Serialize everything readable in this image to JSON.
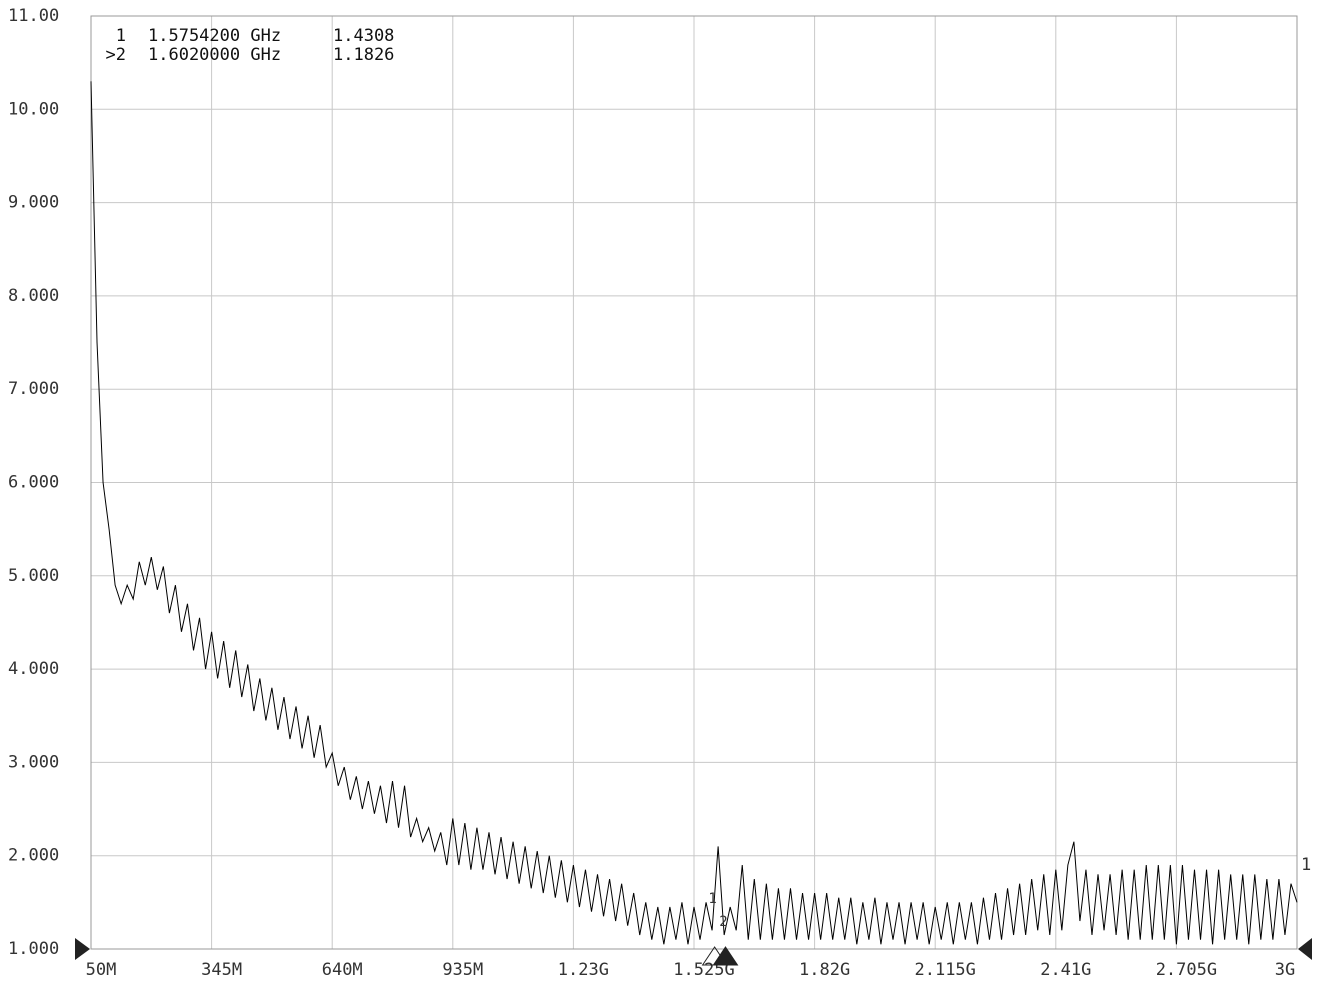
{
  "chart_data": {
    "type": "line",
    "color": "#000000",
    "grid": true,
    "trace_label": "1",
    "xlim": [
      50,
      3000
    ],
    "ylim": [
      1,
      11
    ],
    "xticks": [
      {
        "value": 50,
        "label": "50M"
      },
      {
        "value": 345,
        "label": "345M"
      },
      {
        "value": 640,
        "label": "640M"
      },
      {
        "value": 935,
        "label": "935M"
      },
      {
        "value": 1230,
        "label": "1.23G"
      },
      {
        "value": 1525,
        "label": "1.525G"
      },
      {
        "value": 1820,
        "label": "1.82G"
      },
      {
        "value": 2115,
        "label": "2.115G"
      },
      {
        "value": 2410,
        "label": "2.41G"
      },
      {
        "value": 2705,
        "label": "2.705G"
      },
      {
        "value": 3000,
        "label": "3G"
      }
    ],
    "yticks": [
      {
        "value": 1,
        "label": "1.000"
      },
      {
        "value": 2,
        "label": "2.000"
      },
      {
        "value": 3,
        "label": "3.000"
      },
      {
        "value": 4,
        "label": "4.000"
      },
      {
        "value": 5,
        "label": "5.000"
      },
      {
        "value": 6,
        "label": "6.000"
      },
      {
        "value": 7,
        "label": "7.000"
      },
      {
        "value": 8,
        "label": "8.000"
      },
      {
        "value": 9,
        "label": "9.000"
      },
      {
        "value": 10,
        "label": "10.00"
      },
      {
        "value": 11,
        "label": "11.00"
      }
    ],
    "markers": [
      {
        "id": "1",
        "readout_id": "1",
        "x": 1575.42,
        "x_label": "1.5754200 GHz",
        "y": 1.4308,
        "y_label": "1.4308"
      },
      {
        "id": "2",
        "readout_id": ">2",
        "x": 1602,
        "x_label": "1.6020000 GHz",
        "y": 1.1826,
        "y_label": "1.1826"
      }
    ],
    "x": [
      50,
      64.75,
      79.5,
      94.25,
      109,
      123.75,
      138.5,
      153.25,
      168,
      182.75,
      197.5,
      212.25,
      227,
      241.75,
      256.5,
      271.25,
      286,
      300.75,
      315.5,
      330.25,
      345,
      359.75,
      374.5,
      389.25,
      404,
      418.75,
      433.5,
      448.25,
      463,
      477.75,
      492.5,
      507.25,
      522,
      536.75,
      551.5,
      566.25,
      581,
      595.75,
      610.5,
      625.25,
      640,
      654.75,
      669.5,
      684.25,
      699,
      713.75,
      728.5,
      743.25,
      758,
      772.75,
      787.5,
      802.25,
      817,
      831.75,
      846.5,
      861.25,
      876,
      890.75,
      905.5,
      920.25,
      935,
      949.75,
      964.5,
      979.25,
      994,
      1008.75,
      1023.5,
      1038.25,
      1053,
      1067.75,
      1082.5,
      1097.25,
      1112,
      1126.75,
      1141.5,
      1156.25,
      1171,
      1185.75,
      1200.5,
      1215.25,
      1230,
      1244.75,
      1259.5,
      1274.25,
      1289,
      1303.75,
      1318.5,
      1333.25,
      1348,
      1362.75,
      1377.5,
      1392.25,
      1407,
      1421.75,
      1436.5,
      1451.25,
      1466,
      1480.75,
      1495.5,
      1510.25,
      1525,
      1539.75,
      1554.5,
      1569.25,
      1584,
      1598.75,
      1613.5,
      1628.25,
      1643,
      1657.75,
      1672.5,
      1687.25,
      1702,
      1716.75,
      1731.5,
      1746.25,
      1761,
      1775.75,
      1790.5,
      1805.25,
      1820,
      1834.75,
      1849.5,
      1864.25,
      1879,
      1893.75,
      1908.5,
      1923.25,
      1938,
      1952.75,
      1967.5,
      1982.25,
      1997,
      2011.75,
      2026.5,
      2041.25,
      2056,
      2070.75,
      2085.5,
      2100.25,
      2115,
      2129.75,
      2144.5,
      2159.25,
      2174,
      2188.75,
      2203.5,
      2218.25,
      2233,
      2247.75,
      2262.5,
      2277.25,
      2292,
      2306.75,
      2321.5,
      2336.25,
      2351,
      2365.75,
      2380.5,
      2395.25,
      2410,
      2424.75,
      2439.5,
      2454.25,
      2469,
      2483.75,
      2498.5,
      2513.25,
      2528,
      2542.75,
      2557.5,
      2572.25,
      2587,
      2601.75,
      2616.5,
      2631.25,
      2646,
      2660.75,
      2675.5,
      2690.25,
      2705,
      2719.75,
      2734.5,
      2749.25,
      2764,
      2778.75,
      2793.5,
      2808.25,
      2823,
      2837.75,
      2852.5,
      2867.25,
      2882,
      2896.75,
      2911.5,
      2926.25,
      2941,
      2955.75,
      2970.5,
      2985.25,
      3000
    ],
    "values": [
      10.3,
      7.5,
      6.0,
      5.5,
      4.9,
      4.7,
      4.9,
      4.75,
      5.15,
      4.9,
      5.2,
      4.85,
      5.1,
      4.6,
      4.9,
      4.4,
      4.7,
      4.2,
      4.55,
      4.0,
      4.4,
      3.9,
      4.3,
      3.8,
      4.2,
      3.7,
      4.05,
      3.55,
      3.9,
      3.45,
      3.8,
      3.35,
      3.7,
      3.25,
      3.6,
      3.15,
      3.5,
      3.05,
      3.4,
      2.95,
      3.1,
      2.75,
      2.95,
      2.6,
      2.85,
      2.5,
      2.8,
      2.45,
      2.75,
      2.35,
      2.8,
      2.3,
      2.75,
      2.2,
      2.4,
      2.15,
      2.3,
      2.05,
      2.25,
      1.9,
      2.4,
      1.9,
      2.35,
      1.85,
      2.3,
      1.85,
      2.25,
      1.8,
      2.2,
      1.75,
      2.15,
      1.7,
      2.1,
      1.65,
      2.05,
      1.6,
      2.0,
      1.55,
      1.95,
      1.5,
      1.9,
      1.45,
      1.85,
      1.4,
      1.8,
      1.35,
      1.75,
      1.3,
      1.7,
      1.25,
      1.6,
      1.15,
      1.5,
      1.1,
      1.45,
      1.05,
      1.45,
      1.1,
      1.5,
      1.05,
      1.45,
      1.1,
      1.5,
      1.2,
      2.1,
      1.15,
      1.45,
      1.2,
      1.9,
      1.1,
      1.75,
      1.1,
      1.7,
      1.1,
      1.65,
      1.1,
      1.65,
      1.1,
      1.6,
      1.1,
      1.6,
      1.1,
      1.6,
      1.1,
      1.55,
      1.1,
      1.55,
      1.05,
      1.5,
      1.1,
      1.55,
      1.05,
      1.5,
      1.1,
      1.5,
      1.05,
      1.5,
      1.1,
      1.5,
      1.05,
      1.45,
      1.1,
      1.5,
      1.05,
      1.5,
      1.1,
      1.5,
      1.05,
      1.55,
      1.1,
      1.6,
      1.1,
      1.65,
      1.15,
      1.7,
      1.15,
      1.75,
      1.2,
      1.8,
      1.15,
      1.85,
      1.2,
      1.9,
      2.15,
      1.3,
      1.85,
      1.15,
      1.8,
      1.2,
      1.8,
      1.15,
      1.85,
      1.1,
      1.85,
      1.1,
      1.9,
      1.1,
      1.9,
      1.1,
      1.9,
      1.05,
      1.9,
      1.1,
      1.85,
      1.1,
      1.85,
      1.05,
      1.85,
      1.1,
      1.8,
      1.1,
      1.8,
      1.05,
      1.8,
      1.1,
      1.75,
      1.1,
      1.75,
      1.15,
      1.7,
      1.5
    ]
  }
}
